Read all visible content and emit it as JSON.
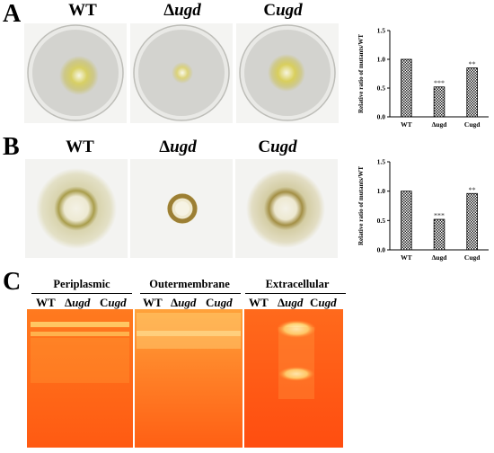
{
  "figure": {
    "panel_a": {
      "letter": "A",
      "labels": [
        "WT",
        "Δugd",
        "Cugd"
      ]
    },
    "panel_b": {
      "letter": "B",
      "labels": [
        "WT",
        "Δugd",
        "Cugd"
      ]
    },
    "panel_c": {
      "letter": "C",
      "gel_titles": [
        "Periplasmic",
        "Outermembrane",
        "Extracellular"
      ],
      "lanes": [
        "WT",
        "Δugd",
        "Cugd"
      ]
    }
  },
  "chart_data": [
    {
      "type": "bar",
      "categories": [
        "WT",
        "Δugd",
        "Cugd"
      ],
      "values": [
        1.0,
        0.52,
        0.85
      ],
      "significance": [
        "",
        "***",
        "**"
      ],
      "ylabel": "Relative ratio of mutants/WT",
      "ylim": [
        0,
        1.5
      ],
      "yticks": [
        "0.0",
        "0.5",
        "1.0",
        "1.5"
      ]
    },
    {
      "type": "bar",
      "categories": [
        "WT",
        "Δugd",
        "Cugd"
      ],
      "values": [
        1.0,
        0.52,
        0.96
      ],
      "significance": [
        "",
        "***",
        "**"
      ],
      "ylabel": "Relative ratio of mutants/WT",
      "ylim": [
        0,
        1.5
      ],
      "yticks": [
        "0.0",
        "0.5",
        "1.0",
        "1.5"
      ]
    }
  ],
  "colors": {
    "plate_bg": "#d6d6d3",
    "colony_yellow": "#c9c14a",
    "gel_orange": "#ff6a1a",
    "gel_band": "#fff1a8"
  }
}
